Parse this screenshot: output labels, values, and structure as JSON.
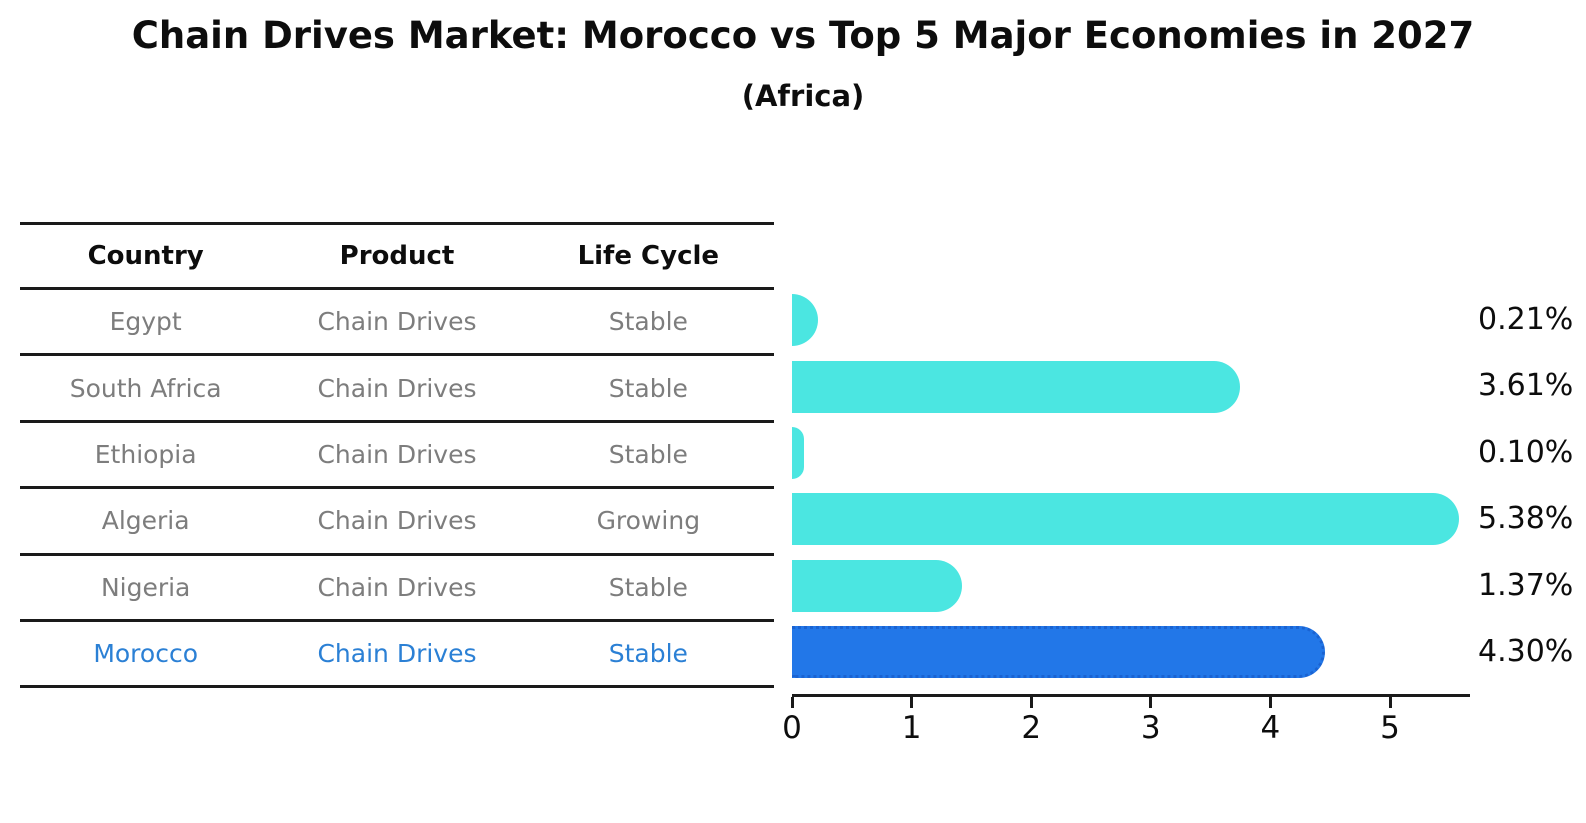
{
  "title": "Chain Drives Market: Morocco vs Top 5 Major Economies in 2027",
  "subtitle": "(Africa)",
  "table": {
    "headers": [
      "Country",
      "Product",
      "Life Cycle"
    ],
    "rows": [
      {
        "country": "Egypt",
        "product": "Chain Drives",
        "life_cycle": "Stable",
        "highlighted": false
      },
      {
        "country": "South Africa",
        "product": "Chain Drives",
        "life_cycle": "Stable",
        "highlighted": false
      },
      {
        "country": "Ethiopia",
        "product": "Chain Drives",
        "life_cycle": "Stable",
        "highlighted": false
      },
      {
        "country": "Algeria",
        "product": "Chain Drives",
        "life_cycle": "Growing",
        "highlighted": false
      },
      {
        "country": "Nigeria",
        "product": "Chain Drives",
        "life_cycle": "Stable",
        "highlighted": false
      },
      {
        "country": "Morocco",
        "product": "Chain Drives",
        "life_cycle": "Stable",
        "highlighted": true
      }
    ]
  },
  "chart_data": {
    "type": "bar",
    "orientation": "horizontal",
    "title": "Chain Drives Market: Morocco vs Top 5 Major Economies in 2027",
    "subtitle": "(Africa)",
    "categories": [
      "Egypt",
      "South Africa",
      "Ethiopia",
      "Algeria",
      "Nigeria",
      "Morocco"
    ],
    "values": [
      0.21,
      3.61,
      0.1,
      5.38,
      1.37,
      4.3
    ],
    "value_labels": [
      "0.21%",
      "3.61%",
      "0.10%",
      "5.38%",
      "1.37%",
      "4.30%"
    ],
    "x_ticks": [
      "0",
      "1",
      "2",
      "3",
      "4",
      "5"
    ],
    "xlim": [
      0,
      5.67
    ],
    "grid": false,
    "legend": false,
    "highlight_index": 5,
    "bar_color": "#4be6e1",
    "highlight_bar_color": "#2277e8",
    "highlight_border_color": "#1a63d2"
  },
  "colors": {
    "background": "#ffffff",
    "axis_line": "#1a1a1a",
    "table_text_gray": "#7d7d7d",
    "highlight_text_blue": "#2b80d5",
    "text_black": "#0d0d0d"
  }
}
